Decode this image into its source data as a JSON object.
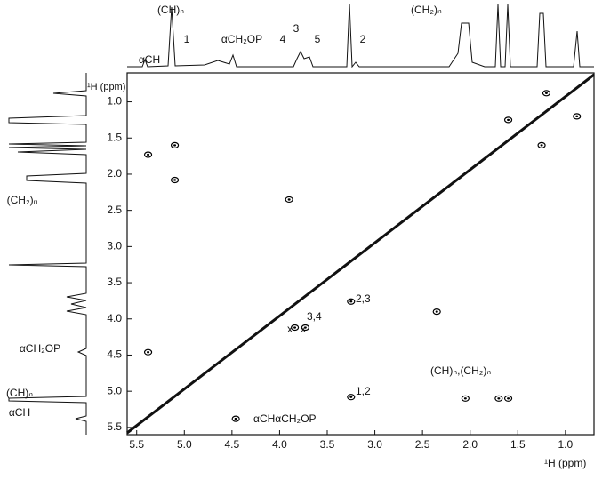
{
  "chart_data": {
    "type": "scatter",
    "xlabel": "¹H (ppm)",
    "ylabel": "¹H (ppm)",
    "xlim": [
      5.6,
      0.7
    ],
    "ylim": [
      0.6,
      5.6
    ],
    "xticks": [
      {
        "value": 5.5,
        "label": "5.5"
      },
      {
        "value": 5,
        "label": "5.0"
      },
      {
        "value": 4.5,
        "label": "4.5"
      },
      {
        "value": 4,
        "label": "4.0"
      },
      {
        "value": 3.5,
        "label": "3.5"
      },
      {
        "value": 3,
        "label": "3.0"
      },
      {
        "value": 2.5,
        "label": "2.5"
      },
      {
        "value": 2,
        "label": "2.0"
      },
      {
        "value": 1.5,
        "label": "1.5"
      },
      {
        "value": 1,
        "label": "1.0"
      }
    ],
    "yticks": [
      {
        "value": 1,
        "label": "1.0"
      },
      {
        "value": 1.5,
        "label": "1.5"
      },
      {
        "value": 2,
        "label": "2.0"
      },
      {
        "value": 2.5,
        "label": "2.5"
      },
      {
        "value": 3,
        "label": "3.0"
      },
      {
        "value": 3.5,
        "label": "3.5"
      },
      {
        "value": 4,
        "label": "4.0"
      },
      {
        "value": 4.5,
        "label": "4.5"
      },
      {
        "value": 5,
        "label": "5.0"
      },
      {
        "value": 5.5,
        "label": "5.5"
      }
    ],
    "color": "#000000",
    "x": [
      5.38,
      5.38,
      5.1,
      5.1,
      4.46,
      3.25,
      3.25,
      3.84,
      3.73,
      1.7,
      1.6,
      2.05,
      1.2,
      0.88,
      3.9,
      2.35,
      1.25,
      1.6
    ],
    "values": [
      4.46,
      1.73,
      1.6,
      2.08,
      5.38,
      5.08,
      3.76,
      4.12,
      4.12,
      5.1,
      5.1,
      5.1,
      0.88,
      1.2,
      2.35,
      3.9,
      1.6,
      1.25
    ],
    "top_labels": [
      "αCH",
      "(CH)ₙ",
      "1",
      "αCH₂OP",
      "4",
      "3",
      "5",
      "2",
      "(CH₂)ₙ"
    ],
    "left_labels": [
      "(CH₂)ₙ",
      "αCH₂OP",
      "(CH)ₙ",
      "αCH"
    ],
    "annotations": [
      "2,3",
      "3,4",
      "x",
      "x",
      "1,2",
      "(CH)ₙ,(CH₂)ₙ",
      "αCHαCH₂OP"
    ]
  }
}
